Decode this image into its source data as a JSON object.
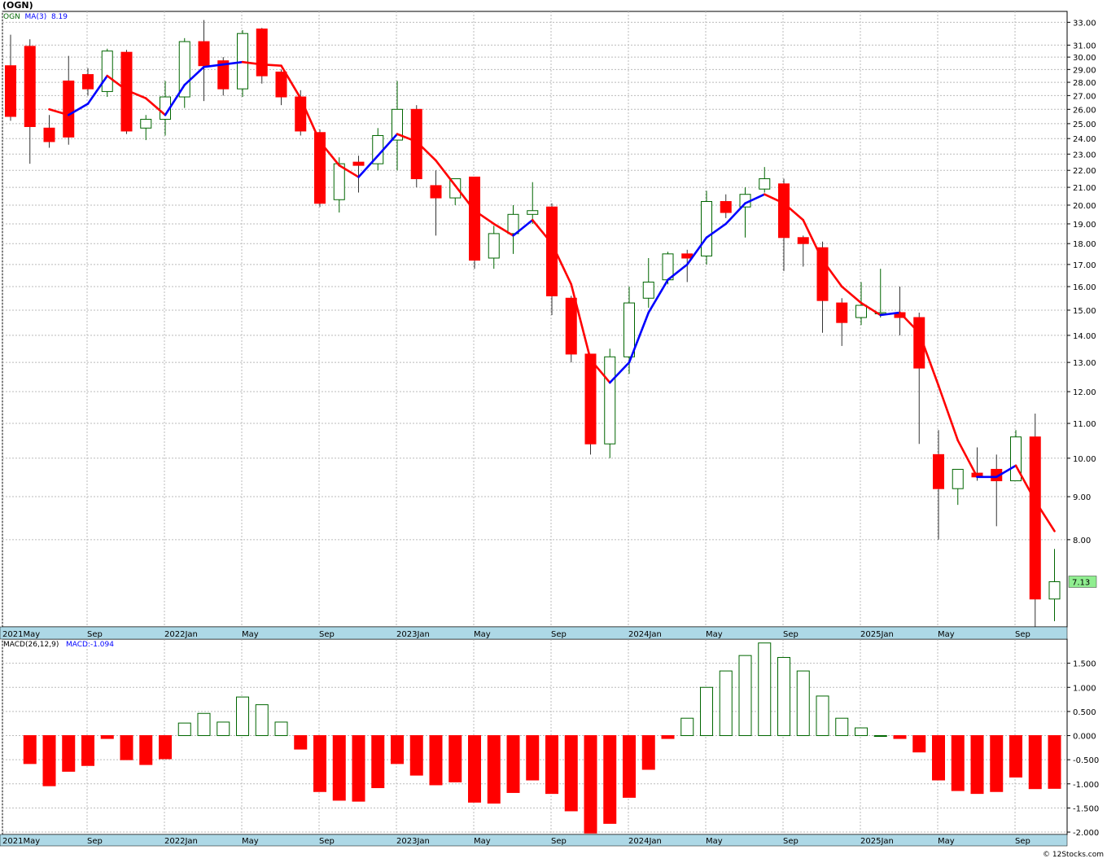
{
  "header": {
    "title": "(OGN)",
    "symbol": "OGN",
    "ma_label": "MA(3)",
    "ma_value": "8.19",
    "macd_label": "MACD(26,12,9)",
    "macd_value": "MACD:-1.094"
  },
  "footer": "© 12Stocks.com",
  "colors": {
    "up": "#006600",
    "down": "#ff0000",
    "ma_up": "#0000ff",
    "ma_down": "#ff0000",
    "grid": "#bbbbbb",
    "axis_band": "#add8e6",
    "last_price_box": "#90ee90"
  },
  "chart_data": [
    {
      "type": "candlestick",
      "symbol": "OGN",
      "scale": "log",
      "ylim": [
        6.3,
        34.0
      ],
      "y_ticks": [
        "33.00",
        "31.00",
        "30.00",
        "29.00",
        "28.00",
        "27.00",
        "26.00",
        "25.00",
        "24.00",
        "23.00",
        "22.00",
        "21.00",
        "20.00",
        "19.00",
        "18.00",
        "17.00",
        "16.00",
        "15.00",
        "14.00",
        "13.00",
        "12.00",
        "11.00",
        "10.00",
        "9.00",
        "8.00"
      ],
      "x_labels": [
        "2021May",
        "Sep",
        "2022Jan",
        "May",
        "Sep",
        "2023Jan",
        "May",
        "Sep",
        "2024Jan",
        "May",
        "Sep",
        "2025Jan",
        "May",
        "Sep"
      ],
      "last_price": "7.13",
      "ma_label": "MA(3)",
      "ohlc": [
        [
          29.3,
          31.9,
          25.2,
          25.5
        ],
        [
          30.9,
          31.5,
          22.4,
          24.8
        ],
        [
          24.7,
          25.6,
          23.4,
          23.8
        ],
        [
          28.1,
          30.1,
          23.6,
          24.1
        ],
        [
          28.6,
          29.1,
          27.0,
          27.5
        ],
        [
          27.3,
          30.7,
          26.9,
          30.5
        ],
        [
          30.4,
          30.6,
          24.3,
          24.5
        ],
        [
          24.7,
          25.6,
          23.9,
          25.3
        ],
        [
          25.3,
          28.1,
          24.2,
          26.9
        ],
        [
          26.9,
          31.6,
          26.1,
          31.3
        ],
        [
          31.3,
          33.2,
          26.6,
          29.3
        ],
        [
          29.7,
          30.0,
          27.0,
          27.5
        ],
        [
          27.5,
          32.3,
          26.9,
          32.0
        ],
        [
          32.4,
          32.5,
          27.9,
          28.5
        ],
        [
          28.8,
          29.0,
          26.3,
          26.9
        ],
        [
          26.9,
          27.4,
          24.2,
          24.5
        ],
        [
          24.4,
          24.6,
          19.9,
          20.1
        ],
        [
          20.3,
          22.8,
          19.6,
          22.4
        ],
        [
          22.5,
          22.9,
          20.7,
          22.3
        ],
        [
          22.4,
          24.7,
          22.0,
          24.2
        ],
        [
          23.9,
          28.1,
          22.0,
          26.0
        ],
        [
          26.0,
          26.3,
          21.0,
          21.5
        ],
        [
          21.1,
          22.0,
          18.4,
          20.4
        ],
        [
          20.4,
          21.5,
          20.0,
          21.5
        ],
        [
          21.6,
          21.6,
          16.8,
          17.2
        ],
        [
          17.3,
          18.9,
          16.8,
          18.5
        ],
        [
          18.5,
          20.0,
          17.5,
          19.5
        ],
        [
          19.5,
          21.3,
          19.0,
          19.7
        ],
        [
          19.9,
          20.1,
          14.8,
          15.6
        ],
        [
          15.5,
          15.6,
          13.0,
          13.3
        ],
        [
          13.3,
          13.3,
          10.1,
          10.4
        ],
        [
          10.4,
          13.5,
          10.0,
          13.2
        ],
        [
          13.2,
          16.0,
          12.6,
          15.3
        ],
        [
          15.5,
          17.3,
          15.1,
          16.2
        ],
        [
          16.3,
          17.6,
          16.1,
          17.5
        ],
        [
          17.5,
          17.7,
          16.2,
          17.3
        ],
        [
          17.4,
          20.8,
          17.0,
          20.2
        ],
        [
          20.2,
          20.6,
          19.3,
          19.6
        ],
        [
          19.9,
          21.0,
          18.3,
          20.6
        ],
        [
          20.9,
          22.2,
          20.7,
          21.5
        ],
        [
          21.2,
          21.5,
          16.7,
          18.3
        ],
        [
          18.3,
          18.4,
          16.9,
          18.0
        ],
        [
          17.8,
          18.1,
          14.1,
          15.4
        ],
        [
          15.3,
          15.5,
          13.6,
          14.5
        ],
        [
          14.7,
          16.2,
          14.4,
          15.2
        ],
        [
          14.9,
          16.8,
          14.7,
          14.9
        ],
        [
          14.9,
          16.0,
          14.0,
          14.7
        ],
        [
          14.7,
          14.9,
          10.4,
          12.8
        ],
        [
          10.1,
          10.8,
          8.0,
          9.2
        ],
        [
          9.2,
          9.7,
          8.8,
          9.7
        ],
        [
          9.6,
          10.3,
          9.4,
          9.5
        ],
        [
          9.7,
          10.1,
          8.3,
          9.4
        ],
        [
          9.4,
          10.8,
          9.4,
          10.6
        ],
        [
          10.6,
          11.3,
          6.3,
          6.8
        ],
        [
          6.8,
          7.8,
          6.4,
          7.13
        ]
      ],
      "ma": [
        null,
        null,
        26.0,
        25.6,
        26.4,
        28.5,
        27.4,
        26.8,
        25.6,
        27.8,
        29.2,
        29.4,
        29.6,
        29.4,
        29.3,
        26.8,
        23.8,
        22.3,
        21.6,
        22.9,
        24.3,
        23.8,
        22.6,
        21.1,
        19.7,
        19.0,
        18.4,
        19.2,
        18.0,
        16.1,
        13.1,
        12.3,
        13.0,
        14.9,
        16.3,
        17.0,
        18.3,
        19.0,
        20.1,
        20.6,
        20.1,
        19.2,
        17.2,
        16.0,
        15.3,
        14.8,
        14.9,
        14.1,
        12.2,
        10.5,
        9.5,
        9.5,
        9.8,
        8.9,
        8.19
      ]
    },
    {
      "type": "bar",
      "title": "MACD(26,12,9)",
      "value_label": "MACD:-1.094",
      "ylim": [
        -2.05,
        2.0
      ],
      "y_ticks": [
        "1.500",
        "1.000",
        "0.500",
        "0.000",
        "-0.500",
        "-1.000",
        "-1.500",
        "-2.000"
      ],
      "x_labels": [
        "2021May",
        "Sep",
        "2022Jan",
        "May",
        "Sep",
        "2023Jan",
        "May",
        "Sep",
        "2024Jan",
        "May",
        "Sep",
        "2025Jan",
        "May",
        "Sep"
      ],
      "values": [
        -0.58,
        -1.04,
        -0.74,
        -0.62,
        -0.06,
        -0.5,
        -0.6,
        -0.48,
        0.26,
        0.46,
        0.28,
        0.8,
        0.64,
        0.28,
        -0.28,
        -1.16,
        -1.34,
        -1.36,
        -1.08,
        -0.58,
        -0.82,
        -1.02,
        -0.96,
        -1.38,
        -1.4,
        -1.18,
        -0.92,
        -1.2,
        -1.56,
        -2.02,
        -1.82,
        -1.28,
        -0.7,
        -0.06,
        0.36,
        1.0,
        1.34,
        1.66,
        1.92,
        1.62,
        1.34,
        0.82,
        0.36,
        0.16,
        0.0,
        -0.06,
        -0.34,
        -0.92,
        -1.14,
        -1.2,
        -1.16,
        -0.86,
        -1.1,
        -1.094
      ]
    }
  ]
}
